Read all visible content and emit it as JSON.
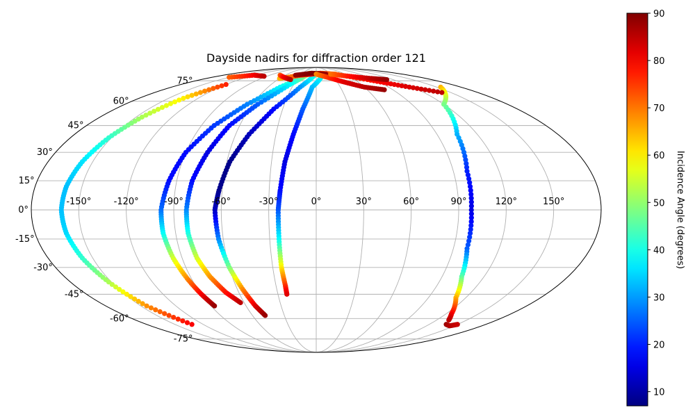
{
  "chart_data": {
    "type": "scatter",
    "projection": "mollweide",
    "title": "Dayside nadirs for diffraction order 121",
    "grid": true,
    "lon_tick_labels": [
      "-150°",
      "-120°",
      "-90°",
      "-60°",
      "-30°",
      "0°",
      "30°",
      "60°",
      "90°",
      "120°",
      "150°"
    ],
    "lon_ticks": [
      -150,
      -120,
      -90,
      -60,
      -30,
      0,
      30,
      60,
      90,
      120,
      150
    ],
    "lat_tick_labels": [
      "-75°",
      "-60°",
      "-45°",
      "-30°",
      "-15°",
      "0°",
      "15°",
      "30°",
      "45°",
      "60°",
      "75°"
    ],
    "lat_ticks": [
      -75,
      -60,
      -45,
      -30,
      -15,
      0,
      15,
      30,
      45,
      60,
      75
    ],
    "colorbar": {
      "label": "Incidence Angle (degrees)",
      "colormap": "jet",
      "range": [
        7,
        90
      ],
      "tick_labels": [
        "10",
        "20",
        "30",
        "40",
        "50",
        "60",
        "70",
        "80",
        "90"
      ],
      "ticks": [
        10,
        20,
        30,
        40,
        50,
        60,
        70,
        80,
        90
      ]
    },
    "series": [
      {
        "points": [
          [
            -120,
            72,
            77
          ],
          [
            -135,
            62,
            60
          ],
          [
            -145,
            50,
            52
          ],
          [
            -152,
            38,
            42
          ],
          [
            -157,
            25,
            36
          ],
          [
            -160,
            12,
            33
          ],
          [
            -161,
            0,
            33
          ],
          [
            -160,
            -12,
            35
          ],
          [
            -157,
            -25,
            42
          ],
          [
            -152,
            -38,
            52
          ],
          [
            -145,
            -52,
            68
          ],
          [
            -132,
            -64,
            80
          ]
        ]
      },
      {
        "points": [
          [
            -20,
            80,
            50
          ],
          [
            -45,
            70,
            38
          ],
          [
            -65,
            58,
            28
          ],
          [
            -80,
            45,
            22
          ],
          [
            -90,
            30,
            18
          ],
          [
            -95,
            15,
            18
          ],
          [
            -98,
            0,
            26
          ],
          [
            -98,
            -12,
            38
          ],
          [
            -96,
            -25,
            55
          ],
          [
            -93,
            -36,
            68
          ],
          [
            -90,
            -45,
            80
          ],
          [
            -87,
            -52,
            88
          ]
        ]
      },
      {
        "points": [
          [
            -15,
            82,
            55
          ],
          [
            -35,
            72,
            38
          ],
          [
            -55,
            58,
            25
          ],
          [
            -68,
            45,
            18
          ],
          [
            -75,
            30,
            15
          ],
          [
            -80,
            15,
            18
          ],
          [
            -82,
            0,
            28
          ],
          [
            -82,
            -12,
            40
          ],
          [
            -80,
            -25,
            55
          ],
          [
            -76,
            -35,
            67
          ],
          [
            -70,
            -44,
            78
          ],
          [
            -63,
            -50,
            85
          ]
        ]
      },
      {
        "points": [
          [
            0,
            82,
            45
          ],
          [
            -20,
            70,
            30
          ],
          [
            -38,
            55,
            18
          ],
          [
            -50,
            40,
            12
          ],
          [
            -58,
            25,
            8
          ],
          [
            -62,
            10,
            8
          ],
          [
            -64,
            0,
            12
          ],
          [
            -63,
            -15,
            28
          ],
          [
            -60,
            -30,
            48
          ],
          [
            -56,
            -42,
            68
          ],
          [
            -52,
            -52,
            82
          ],
          [
            -48,
            -58,
            88
          ]
        ]
      },
      {
        "points": [
          [
            15,
            82,
            42
          ],
          [
            -5,
            70,
            33
          ],
          [
            -12,
            55,
            25
          ],
          [
            -17,
            40,
            18
          ],
          [
            -21,
            25,
            15
          ],
          [
            -23,
            10,
            18
          ],
          [
            -24,
            0,
            24
          ],
          [
            -24,
            -15,
            38
          ],
          [
            -24,
            -30,
            60
          ],
          [
            -23,
            -40,
            75
          ],
          [
            -23,
            -45,
            82
          ]
        ]
      },
      {
        "points": [
          [
            155,
            70,
            65
          ],
          [
            120,
            58,
            48
          ],
          [
            105,
            40,
            32
          ],
          [
            99,
            20,
            20
          ],
          [
            98,
            0,
            15
          ],
          [
            99,
            -20,
            25
          ],
          [
            104,
            -35,
            45
          ],
          [
            112,
            -47,
            65
          ],
          [
            125,
            -57,
            80
          ],
          [
            132,
            -61,
            85
          ]
        ]
      },
      {
        "points": [
          [
            138,
            -64,
            88
          ],
          [
            145,
            -65,
            86
          ],
          [
            150,
            -64,
            84
          ]
        ]
      },
      {
        "points": [
          [
            -60,
            77,
            65
          ],
          [
            -30,
            80,
            75
          ],
          [
            -10,
            81,
            80
          ],
          [
            10,
            82,
            75
          ],
          [
            40,
            81,
            72
          ],
          [
            80,
            76,
            78
          ],
          [
            110,
            71,
            82
          ],
          [
            140,
            66,
            85
          ]
        ]
      },
      {
        "points": [
          [
            -150,
            78,
            72
          ],
          [
            -120,
            80,
            80
          ],
          [
            -95,
            79,
            85
          ]
        ]
      },
      {
        "points": [
          [
            -40,
            80,
            88
          ],
          [
            -10,
            82,
            90
          ],
          [
            20,
            81,
            88
          ]
        ]
      },
      {
        "points": [
          [
            0,
            81,
            68
          ],
          [
            20,
            78,
            75
          ],
          [
            40,
            74,
            82
          ],
          [
            60,
            70,
            85
          ],
          [
            80,
            68,
            88
          ]
        ]
      },
      {
        "points": [
          [
            30,
            81,
            70
          ],
          [
            60,
            79,
            78
          ],
          [
            90,
            77,
            85
          ],
          [
            110,
            76,
            88
          ]
        ]
      },
      {
        "points": [
          [
            -70,
            80,
            72
          ],
          [
            -55,
            78,
            80
          ],
          [
            -40,
            76,
            85
          ]
        ]
      }
    ]
  }
}
